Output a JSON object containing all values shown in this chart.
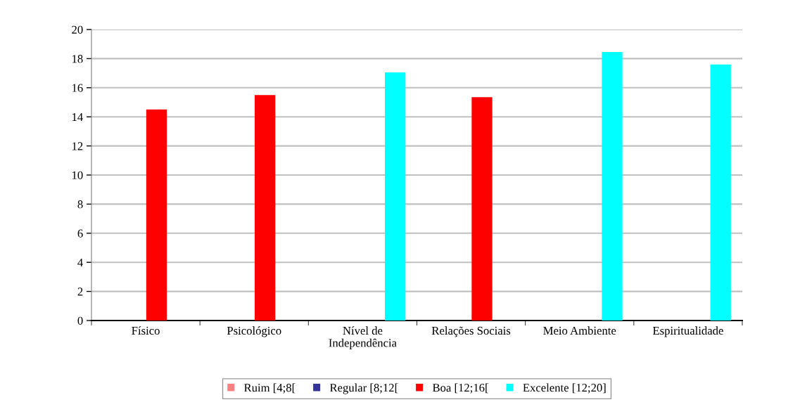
{
  "chart_data": {
    "type": "bar",
    "categories": [
      "Físico",
      "Psicológico",
      "Nível de\nIndependência",
      "Relações Sociais",
      "Meio Ambiente",
      "Espiritualidade"
    ],
    "series": [
      {
        "name": "Ruim [4;8[",
        "color": "#ff8080",
        "values": [
          null,
          null,
          null,
          null,
          null,
          null
        ]
      },
      {
        "name": "Regular [8;12[",
        "color": "#333399",
        "values": [
          null,
          null,
          null,
          null,
          null,
          null
        ]
      },
      {
        "name": "Boa [12;16[",
        "color": "#ff0000",
        "values": [
          14.5,
          15.5,
          null,
          15.35,
          null,
          null
        ]
      },
      {
        "name": "Excelente [12;20]",
        "color": "#00ffff",
        "values": [
          null,
          null,
          17.05,
          null,
          18.45,
          17.6
        ]
      }
    ],
    "ylim": [
      0,
      20
    ],
    "yticks": [
      0,
      2,
      4,
      6,
      8,
      10,
      12,
      14,
      16,
      18,
      20
    ],
    "grid": "y",
    "legend": "bottom"
  }
}
